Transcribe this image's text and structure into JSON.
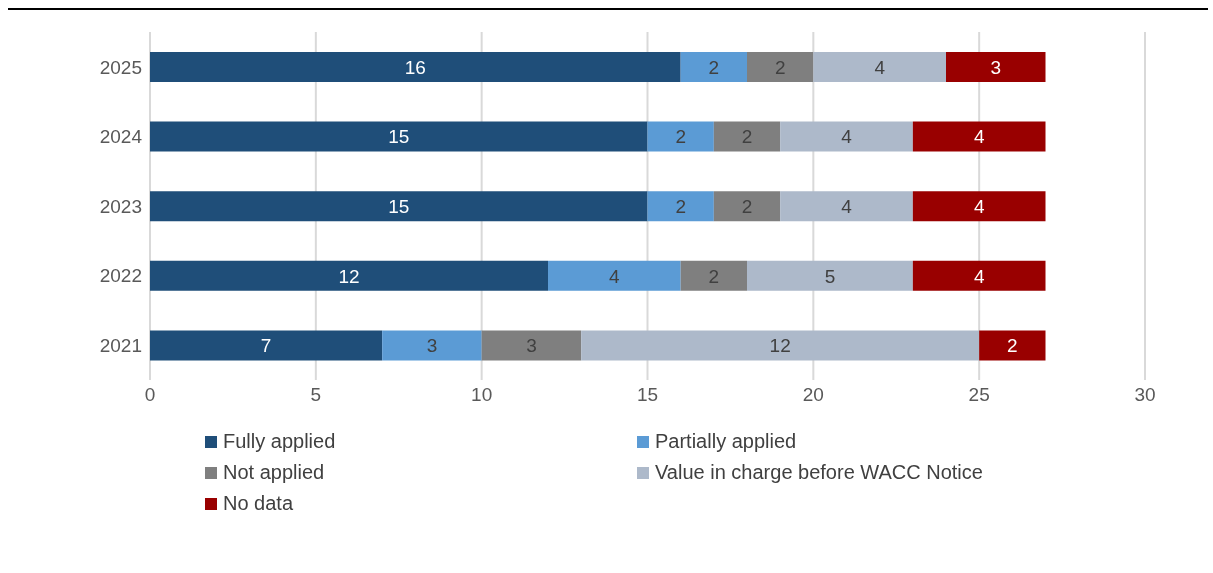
{
  "chart_data": {
    "type": "bar",
    "orientation": "horizontal",
    "stacked": true,
    "categories": [
      "2025",
      "2024",
      "2023",
      "2022",
      "2021"
    ],
    "series": [
      {
        "name": "Fully applied",
        "color": "#1f4e79",
        "values": [
          16,
          15,
          15,
          12,
          7
        ]
      },
      {
        "name": "Partially applied",
        "color": "#5b9bd5",
        "values": [
          2,
          2,
          2,
          4,
          3
        ]
      },
      {
        "name": "Not applied",
        "color": "#7f7f7f",
        "values": [
          2,
          2,
          2,
          2,
          3
        ]
      },
      {
        "name": "Value in charge before WACC Notice",
        "color": "#adb9ca",
        "values": [
          4,
          4,
          4,
          5,
          12
        ]
      },
      {
        "name": "No data",
        "color": "#990000",
        "values": [
          3,
          4,
          4,
          4,
          2
        ]
      }
    ],
    "xlim": [
      0,
      30
    ],
    "xticks": [
      0,
      5,
      10,
      15,
      20,
      25,
      30
    ],
    "grid": "x",
    "legend": "bottom",
    "data_labels": true
  }
}
